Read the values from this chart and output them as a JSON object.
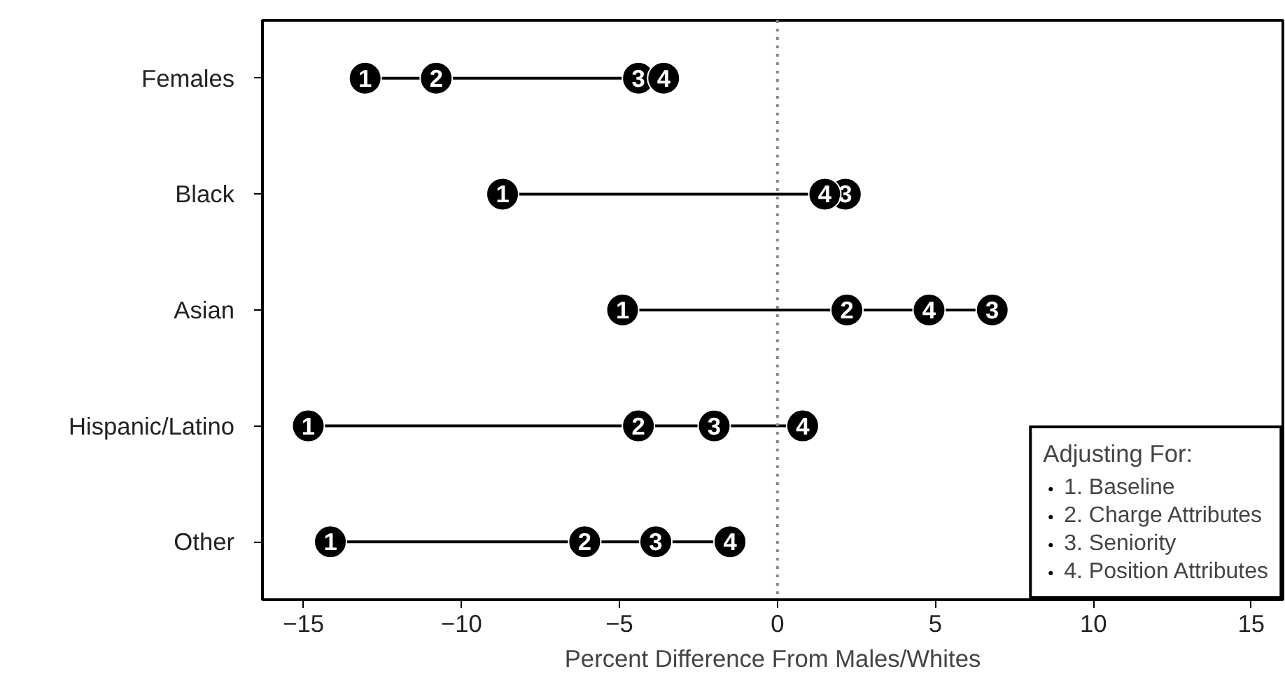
{
  "chart_data": {
    "type": "scatter",
    "xlabel": "Percent Difference From Males/Whites",
    "legend_title": "Adjusting For:",
    "categories": [
      "Females",
      "Black",
      "Asian",
      "Hispanic/Latino",
      "Other"
    ],
    "series": [
      {
        "name": "1. Baseline",
        "color": "#000000",
        "values": [
          -13.05,
          -8.7,
          -4.9,
          -14.85,
          -14.15
        ]
      },
      {
        "name": "2. Charge Attributes",
        "color": "#000000",
        "values": [
          -10.8,
          null,
          2.2,
          -4.4,
          -6.1
        ]
      },
      {
        "name": "3. Seniority",
        "color": "#000000",
        "values": [
          -4.4,
          2.15,
          6.8,
          -2.0,
          -3.85
        ]
      },
      {
        "name": "4. Position Attributes",
        "color": "#000000",
        "values": [
          -3.6,
          1.5,
          4.8,
          0.8,
          -1.5
        ]
      }
    ],
    "annotations": [
      {
        "text": "1",
        "x": -13.05,
        "y": "Females"
      },
      {
        "text": "2",
        "x": -10.8,
        "y": "Females"
      },
      {
        "text": "3",
        "x": -4.4,
        "y": "Females"
      },
      {
        "text": "4",
        "x": -3.6,
        "y": "Females"
      },
      {
        "text": "1",
        "x": -8.7,
        "y": "Black"
      },
      {
        "text": "4",
        "x": 1.5,
        "y": "Black"
      },
      {
        "text": "3",
        "x": 2.15,
        "y": "Black"
      },
      {
        "text": "1",
        "x": -4.9,
        "y": "Asian"
      },
      {
        "text": "2",
        "x": 2.2,
        "y": "Asian"
      },
      {
        "text": "4",
        "x": 4.8,
        "y": "Asian"
      },
      {
        "text": "3",
        "x": 6.8,
        "y": "Asian"
      },
      {
        "text": "1",
        "x": -14.85,
        "y": "Hispanic/Latino"
      },
      {
        "text": "2",
        "x": -4.4,
        "y": "Hispanic/Latino"
      },
      {
        "text": "3",
        "x": -2.0,
        "y": "Hispanic/Latino"
      },
      {
        "text": "4",
        "x": 0.8,
        "y": "Hispanic/Latino"
      },
      {
        "text": "1",
        "x": -14.15,
        "y": "Other"
      },
      {
        "text": "2",
        "x": -6.1,
        "y": "Other"
      },
      {
        "text": "3",
        "x": -3.85,
        "y": "Other"
      },
      {
        "text": "4",
        "x": -1.5,
        "y": "Other"
      }
    ],
    "orientation": "horizontal",
    "xlim": [
      -16.3,
      16
    ],
    "xticks": [
      {
        "value": -15,
        "label": "−15"
      },
      {
        "value": -10,
        "label": "−10"
      },
      {
        "value": -5,
        "label": "−5"
      },
      0,
      5,
      10,
      15
    ],
    "ref_lines": [
      {
        "axis": "x",
        "value": 0,
        "label": null,
        "color": "#888888",
        "line_style": "dotted"
      }
    ],
    "grid": false,
    "legend": "bottom right",
    "marker": "circle"
  }
}
